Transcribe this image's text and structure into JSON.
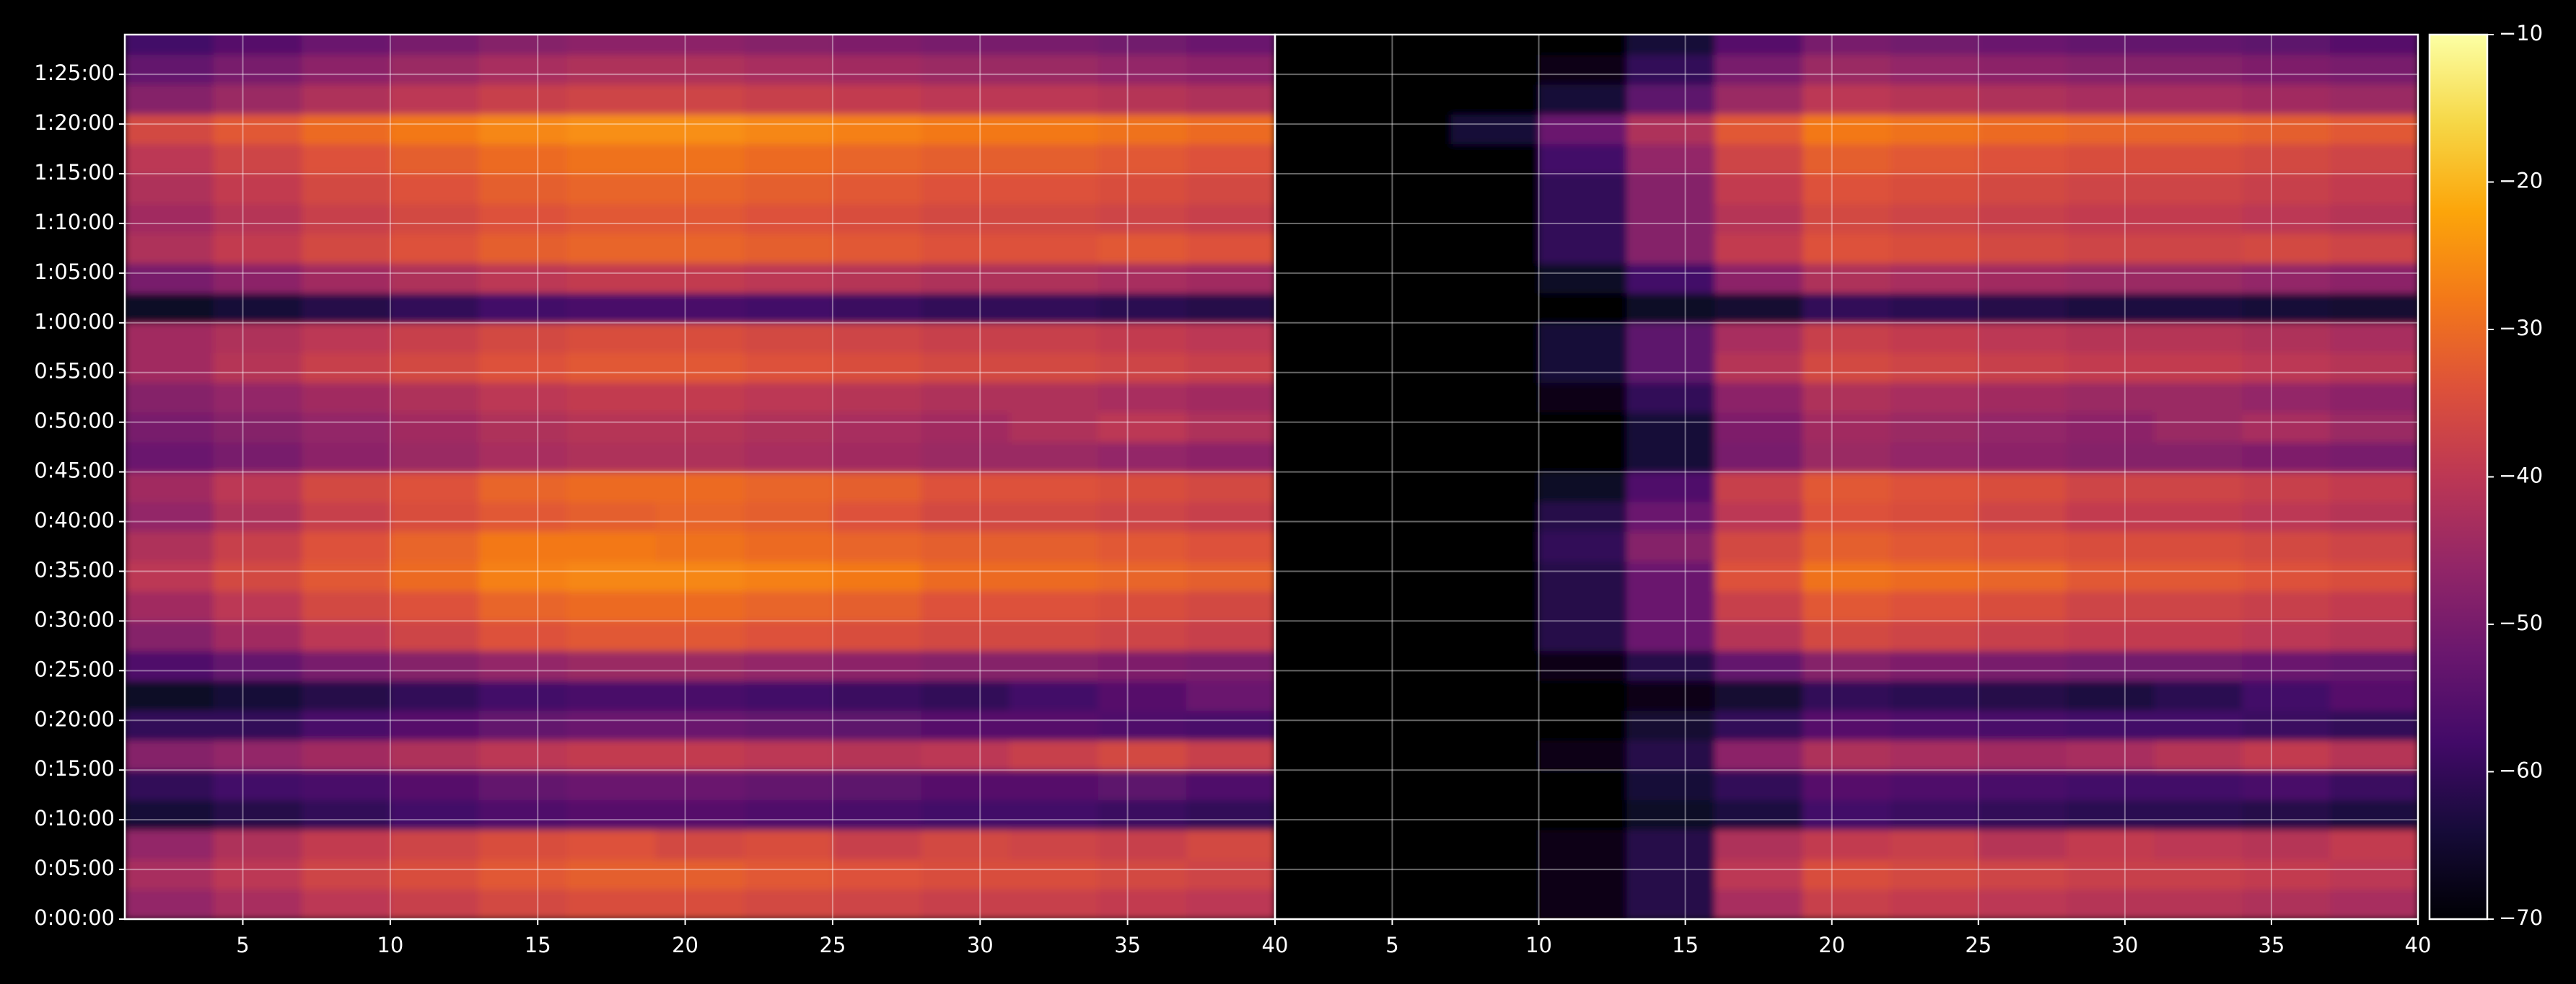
{
  "chart_data": [
    {
      "type": "heatmap",
      "xlim": [
        1,
        40
      ],
      "ylim": [
        0,
        89
      ],
      "xticks": [
        5,
        10,
        15,
        20,
        25,
        30,
        35,
        40
      ],
      "yticks": [
        {
          "value": 0,
          "label": "0:00:00"
        },
        {
          "value": 5,
          "label": "0:05:00"
        },
        {
          "value": 10,
          "label": "0:10:00"
        },
        {
          "value": 15,
          "label": "0:15:00"
        },
        {
          "value": 20,
          "label": "0:20:00"
        },
        {
          "value": 25,
          "label": "0:25:00"
        },
        {
          "value": 30,
          "label": "0:30:00"
        },
        {
          "value": 35,
          "label": "0:35:00"
        },
        {
          "value": 40,
          "label": "0:40:00"
        },
        {
          "value": 45,
          "label": "0:45:00"
        },
        {
          "value": 50,
          "label": "0:50:00"
        },
        {
          "value": 55,
          "label": "0:55:00"
        },
        {
          "value": 60,
          "label": "1:00:00"
        },
        {
          "value": 65,
          "label": "1:05:00"
        },
        {
          "value": 70,
          "label": "1:10:00"
        },
        {
          "value": 75,
          "label": "1:15:00"
        },
        {
          "value": 80,
          "label": "1:20:00"
        },
        {
          "value": 85,
          "label": "1:25:00"
        }
      ],
      "grid": true,
      "x_edges": [
        1,
        4,
        7,
        10,
        13,
        16,
        19,
        22,
        25,
        28,
        31,
        34,
        37,
        40
      ],
      "y_edges": [
        0,
        3,
        6,
        9,
        12,
        15,
        18,
        21,
        24,
        27,
        30,
        33,
        36,
        39,
        42,
        45,
        48,
        51,
        54,
        57,
        60,
        63,
        66,
        69,
        72,
        75,
        78,
        81,
        84,
        87,
        90
      ],
      "z": [
        [
          -46,
          -43,
          -40,
          -38,
          -36,
          -35,
          -35,
          -36,
          -37,
          -38,
          -38,
          -39,
          -40
        ],
        [
          -43,
          -40,
          -37,
          -35,
          -33,
          -32,
          -32,
          -33,
          -34,
          -35,
          -35,
          -36,
          -37
        ],
        [
          -46,
          -42,
          -39,
          -37,
          -35,
          -34,
          -36,
          -35,
          -38,
          -36,
          -37,
          -38,
          -36
        ],
        [
          -64,
          -62,
          -60,
          -58,
          -56,
          -55,
          -55,
          -56,
          -57,
          -58,
          -58,
          -59,
          -60
        ],
        [
          -60,
          -58,
          -57,
          -55,
          -53,
          -52,
          -52,
          -53,
          -54,
          -55,
          -55,
          -54,
          -56
        ],
        [
          -48,
          -46,
          -44,
          -42,
          -40,
          -39,
          -39,
          -40,
          -41,
          -40,
          -38,
          -36,
          -38
        ],
        [
          -60,
          -60,
          -57,
          -55,
          -53,
          -52,
          -52,
          -53,
          -54,
          -55,
          -55,
          -56,
          -57
        ],
        [
          -66,
          -64,
          -62,
          -60,
          -58,
          -57,
          -57,
          -58,
          -59,
          -60,
          -58,
          -55,
          -52
        ],
        [
          -56,
          -53,
          -50,
          -48,
          -46,
          -45,
          -45,
          -46,
          -47,
          -48,
          -48,
          -49,
          -50
        ],
        [
          -48,
          -44,
          -40,
          -37,
          -34,
          -33,
          -33,
          -34,
          -35,
          -36,
          -36,
          -37,
          -38
        ],
        [
          -44,
          -40,
          -36,
          -34,
          -31,
          -30,
          -30,
          -31,
          -32,
          -34,
          -34,
          -35,
          -36
        ],
        [
          -40,
          -36,
          -33,
          -30,
          -27,
          -26,
          -26,
          -27,
          -28,
          -30,
          -30,
          -31,
          -32
        ],
        [
          -42,
          -38,
          -34,
          -31,
          -28,
          -28,
          -29,
          -30,
          -31,
          -32,
          -32,
          -33,
          -34
        ],
        [
          -46,
          -42,
          -38,
          -35,
          -33,
          -32,
          -31,
          -32,
          -34,
          -36,
          -36,
          -37,
          -38
        ],
        [
          -44,
          -40,
          -36,
          -34,
          -31,
          -30,
          -30,
          -31,
          -32,
          -34,
          -34,
          -35,
          -36
        ],
        [
          -52,
          -50,
          -47,
          -45,
          -43,
          -42,
          -42,
          -43,
          -44,
          -45,
          -45,
          -46,
          -47
        ],
        [
          -50,
          -48,
          -46,
          -44,
          -42,
          -41,
          -41,
          -42,
          -43,
          -44,
          -42,
          -40,
          -42
        ],
        [
          -48,
          -46,
          -44,
          -42,
          -40,
          -39,
          -39,
          -40,
          -41,
          -42,
          -42,
          -43,
          -44
        ],
        [
          -44,
          -41,
          -38,
          -36,
          -34,
          -33,
          -33,
          -34,
          -35,
          -36,
          -36,
          -37,
          -38
        ],
        [
          -44,
          -42,
          -40,
          -38,
          -36,
          -35,
          -35,
          -36,
          -37,
          -38,
          -38,
          -39,
          -40
        ],
        [
          -66,
          -64,
          -62,
          -60,
          -58,
          -57,
          -57,
          -58,
          -59,
          -60,
          -60,
          -61,
          -62
        ],
        [
          -50,
          -47,
          -44,
          -42,
          -40,
          -39,
          -39,
          -40,
          -41,
          -42,
          -42,
          -43,
          -44
        ],
        [
          -42,
          -39,
          -36,
          -34,
          -32,
          -31,
          -31,
          -32,
          -33,
          -34,
          -34,
          -33,
          -34
        ],
        [
          -44,
          -41,
          -38,
          -36,
          -34,
          -33,
          -33,
          -34,
          -35,
          -36,
          -36,
          -37,
          -38
        ],
        [
          -42,
          -39,
          -36,
          -34,
          -32,
          -31,
          -31,
          -32,
          -33,
          -34,
          -34,
          -35,
          -36
        ],
        [
          -40,
          -37,
          -34,
          -32,
          -30,
          -29,
          -29,
          -30,
          -31,
          -32,
          -32,
          -33,
          -34
        ],
        [
          -36,
          -33,
          -30,
          -28,
          -26,
          -25,
          -25,
          -26,
          -27,
          -28,
          -28,
          -29,
          -30
        ],
        [
          -48,
          -45,
          -42,
          -40,
          -38,
          -37,
          -37,
          -38,
          -39,
          -40,
          -40,
          -41,
          -42
        ],
        [
          -53,
          -50,
          -47,
          -45,
          -43,
          -42,
          -42,
          -43,
          -44,
          -45,
          -45,
          -46,
          -47
        ],
        [
          -58,
          -55,
          -52,
          -50,
          -48,
          -47,
          -47,
          -48,
          -49,
          -50,
          -50,
          -51,
          -52
        ]
      ]
    },
    {
      "type": "heatmap",
      "xlim": [
        1,
        40
      ],
      "ylim": [
        0,
        89
      ],
      "xticks": [
        5,
        10,
        15,
        20,
        25,
        30,
        35,
        40
      ],
      "grid": true,
      "x_edges": [
        1,
        4,
        7,
        10,
        13,
        16,
        19,
        22,
        25,
        28,
        31,
        34,
        37,
        40
      ],
      "y_edges": [
        0,
        3,
        6,
        9,
        12,
        15,
        18,
        21,
        24,
        27,
        30,
        33,
        36,
        39,
        42,
        45,
        48,
        51,
        54,
        57,
        60,
        63,
        66,
        69,
        72,
        75,
        78,
        81,
        84,
        87,
        90
      ],
      "z": [
        [
          -70,
          -70,
          -70,
          -68,
          -62,
          -43,
          -38,
          -39,
          -40,
          -41,
          -41,
          -42,
          -43
        ],
        [
          -70,
          -70,
          -70,
          -68,
          -62,
          -40,
          -35,
          -36,
          -37,
          -38,
          -38,
          -39,
          -40
        ],
        [
          -70,
          -70,
          -70,
          -68,
          -62,
          -42,
          -39,
          -38,
          -41,
          -39,
          -40,
          -41,
          -39
        ],
        [
          -70,
          -70,
          -70,
          -70,
          -66,
          -63,
          -58,
          -59,
          -60,
          -61,
          -61,
          -62,
          -63
        ],
        [
          -70,
          -70,
          -70,
          -70,
          -64,
          -60,
          -55,
          -56,
          -57,
          -58,
          -58,
          -57,
          -59
        ],
        [
          -70,
          -70,
          -70,
          -68,
          -62,
          -47,
          -42,
          -43,
          -44,
          -43,
          -41,
          -39,
          -41
        ],
        [
          -70,
          -70,
          -70,
          -70,
          -65,
          -60,
          -55,
          -56,
          -57,
          -58,
          -58,
          -59,
          -60
        ],
        [
          -70,
          -70,
          -70,
          -70,
          -68,
          -65,
          -60,
          -61,
          -62,
          -63,
          -61,
          -58,
          -55
        ],
        [
          -70,
          -70,
          -70,
          -68,
          -62,
          -53,
          -48,
          -49,
          -50,
          -51,
          -51,
          -52,
          -53
        ],
        [
          -70,
          -70,
          -70,
          -62,
          -52,
          -41,
          -36,
          -37,
          -38,
          -39,
          -39,
          -40,
          -41
        ],
        [
          -70,
          -70,
          -70,
          -62,
          -52,
          -38,
          -33,
          -34,
          -35,
          -37,
          -37,
          -38,
          -39
        ],
        [
          -70,
          -70,
          -70,
          -62,
          -52,
          -34,
          -29,
          -30,
          -31,
          -33,
          -33,
          -34,
          -35
        ],
        [
          -70,
          -70,
          -70,
          -60,
          -48,
          -36,
          -32,
          -33,
          -34,
          -35,
          -35,
          -36,
          -37
        ],
        [
          -70,
          -70,
          -70,
          -62,
          -52,
          -40,
          -34,
          -35,
          -37,
          -39,
          -39,
          -40,
          -41
        ],
        [
          -70,
          -70,
          -70,
          -66,
          -56,
          -38,
          -33,
          -34,
          -35,
          -37,
          -37,
          -38,
          -39
        ],
        [
          -70,
          -70,
          -70,
          -70,
          -64,
          -50,
          -45,
          -46,
          -47,
          -48,
          -48,
          -49,
          -50
        ],
        [
          -70,
          -70,
          -70,
          -70,
          -64,
          -49,
          -44,
          -45,
          -46,
          -47,
          -45,
          -43,
          -45
        ],
        [
          -70,
          -70,
          -70,
          -68,
          -60,
          -47,
          -42,
          -43,
          -44,
          -45,
          -45,
          -46,
          -47
        ],
        [
          -70,
          -70,
          -70,
          -64,
          -54,
          -41,
          -36,
          -37,
          -38,
          -39,
          -39,
          -40,
          -41
        ],
        [
          -70,
          -70,
          -70,
          -64,
          -54,
          -43,
          -38,
          -39,
          -40,
          -41,
          -41,
          -42,
          -43
        ],
        [
          -70,
          -70,
          -70,
          -70,
          -66,
          -65,
          -60,
          -61,
          -62,
          -63,
          -63,
          -64,
          -65
        ],
        [
          -70,
          -70,
          -70,
          -66,
          -58,
          -47,
          -42,
          -43,
          -44,
          -45,
          -45,
          -46,
          -47
        ],
        [
          -70,
          -70,
          -70,
          -60,
          -48,
          -39,
          -34,
          -35,
          -36,
          -37,
          -37,
          -36,
          -37
        ],
        [
          -70,
          -70,
          -70,
          -60,
          -48,
          -41,
          -36,
          -37,
          -38,
          -39,
          -39,
          -40,
          -41
        ],
        [
          -70,
          -70,
          -70,
          -60,
          -48,
          -39,
          -34,
          -35,
          -36,
          -37,
          -37,
          -38,
          -39
        ],
        [
          -70,
          -70,
          -70,
          -58,
          -46,
          -37,
          -32,
          -33,
          -34,
          -35,
          -35,
          -36,
          -37
        ],
        [
          -70,
          -70,
          -64,
          -52,
          -42,
          -33,
          -28,
          -29,
          -30,
          -31,
          -31,
          -32,
          -33
        ],
        [
          -70,
          -70,
          -70,
          -64,
          -54,
          -45,
          -40,
          -41,
          -42,
          -43,
          -43,
          -44,
          -45
        ],
        [
          -70,
          -70,
          -70,
          -68,
          -60,
          -50,
          -45,
          -46,
          -47,
          -48,
          -48,
          -49,
          -50
        ],
        [
          -70,
          -70,
          -70,
          -70,
          -64,
          -55,
          -50,
          -51,
          -52,
          -53,
          -53,
          -54,
          -55
        ]
      ]
    },
    {
      "type": "colorbar",
      "colormap": "inferno",
      "clim": [
        -70,
        -10
      ],
      "ticks": [
        {
          "value": -70,
          "label": "−70"
        },
        {
          "value": -60,
          "label": "−60"
        },
        {
          "value": -50,
          "label": "−50"
        },
        {
          "value": -40,
          "label": "−40"
        },
        {
          "value": -30,
          "label": "−30"
        },
        {
          "value": -20,
          "label": "−20"
        },
        {
          "value": -10,
          "label": "−10"
        }
      ]
    }
  ]
}
